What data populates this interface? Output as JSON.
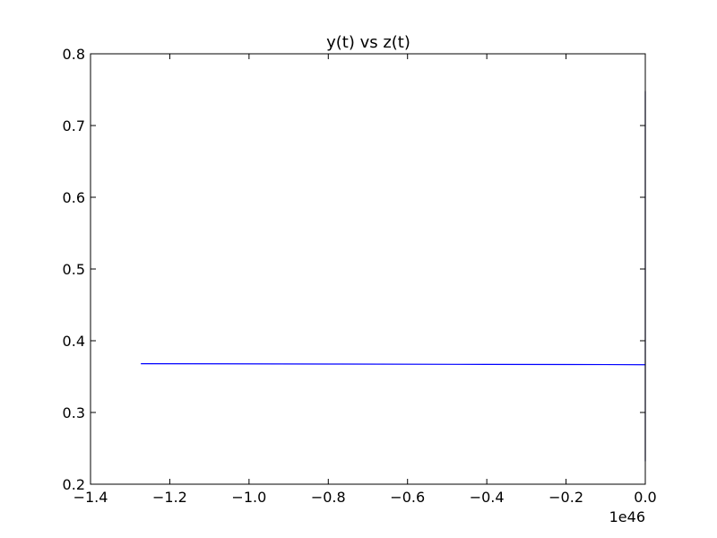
{
  "chart_data": {
    "type": "line",
    "title": "y(t) vs z(t)",
    "xlabel": "",
    "ylabel": "",
    "x_offset_label": "1e46",
    "xlim": [
      -1.4,
      0.0
    ],
    "ylim": [
      0.2,
      0.8
    ],
    "xticks": [
      -1.4,
      -1.2,
      -1.0,
      -0.8,
      -0.6,
      -0.4,
      -0.2,
      0.0
    ],
    "xtick_labels": [
      "−1.4",
      "−1.2",
      "−1.0",
      "−0.8",
      "−0.6",
      "−0.4",
      "−0.2",
      "0.0"
    ],
    "yticks": [
      0.2,
      0.3,
      0.4,
      0.5,
      0.6,
      0.7,
      0.8
    ],
    "ytick_labels": [
      "0.2",
      "0.3",
      "0.4",
      "0.5",
      "0.6",
      "0.7",
      "0.8"
    ],
    "grid": false,
    "series": [
      {
        "color": "#0000ff",
        "x": [
          -1.273,
          -0.8,
          -0.4,
          -0.1,
          0.0
        ],
        "y": [
          0.368,
          0.3675,
          0.367,
          0.3668,
          0.3666
        ]
      },
      {
        "color": "#000066",
        "x": [
          0.0,
          0.0
        ],
        "y": [
          0.232,
          0.748
        ]
      }
    ]
  }
}
